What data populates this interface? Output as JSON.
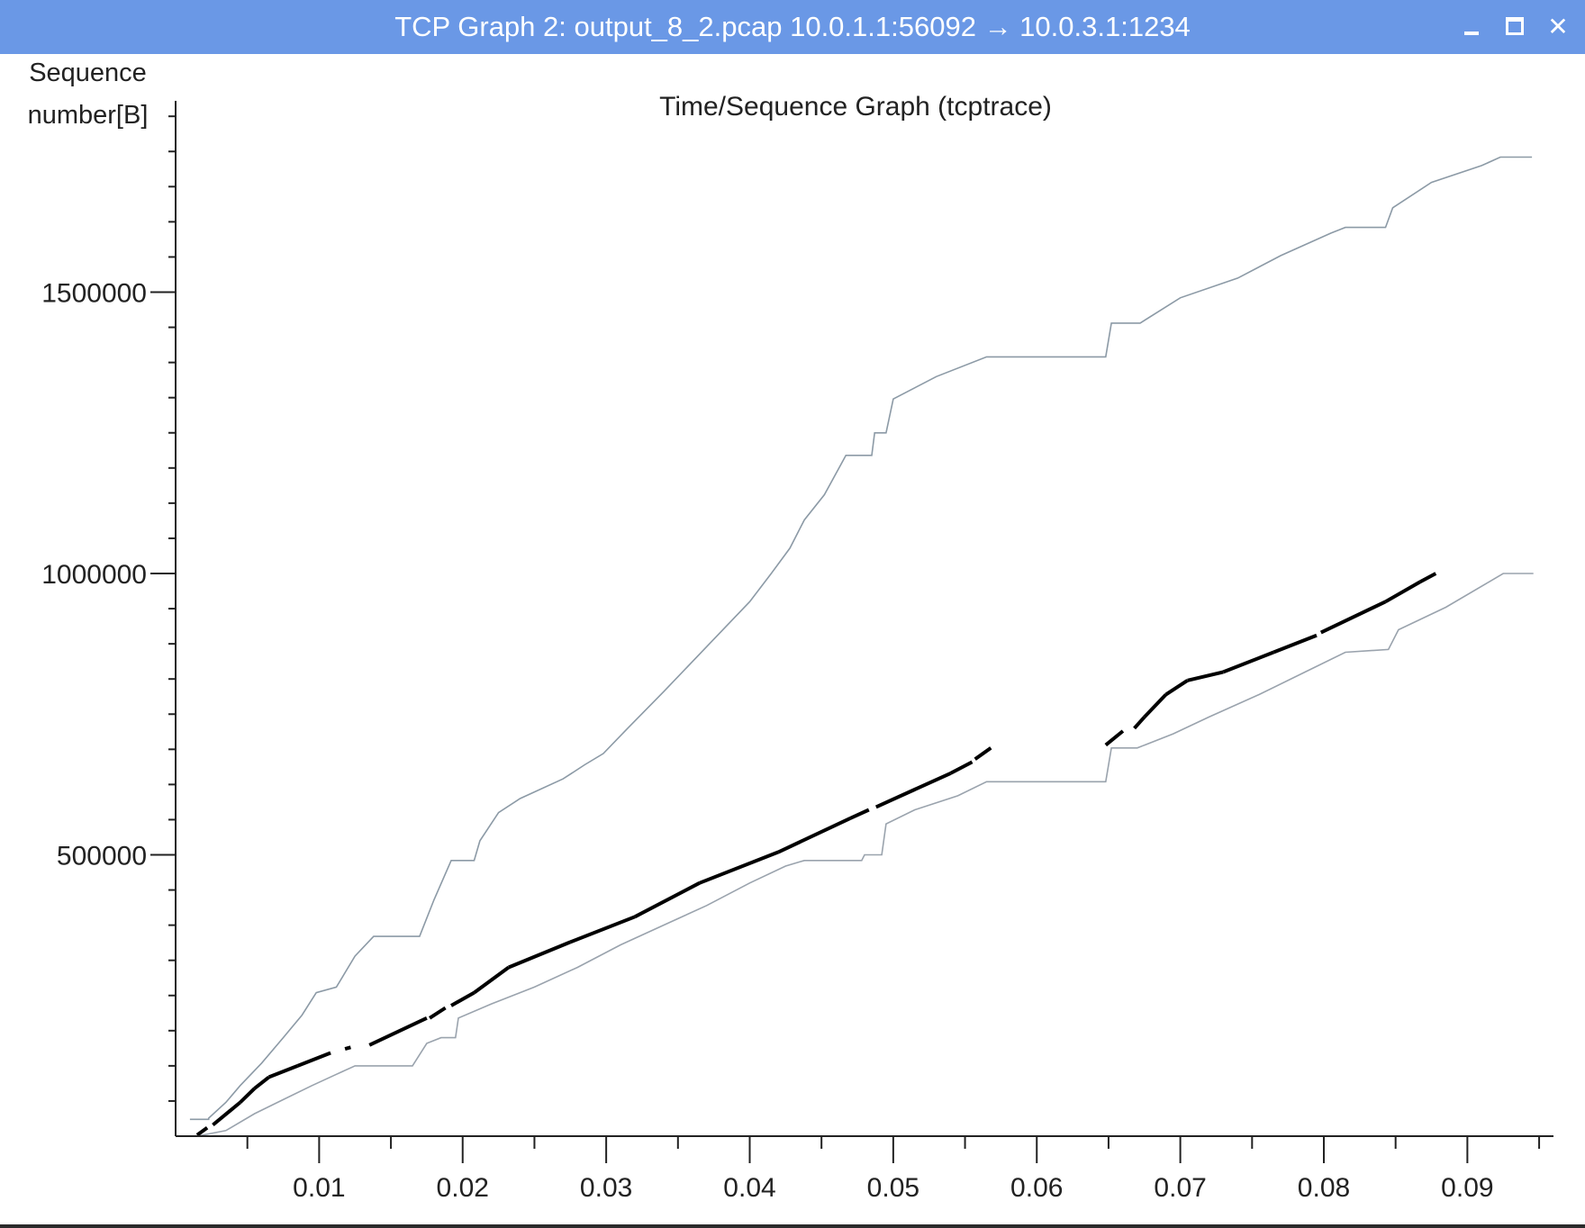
{
  "window": {
    "title": "TCP Graph 2: output_8_2.pcap 10.0.1.1:56092 → 10.0.3.1:1234",
    "min_icon": "minimize-icon",
    "max_icon": "maximize-icon",
    "close_icon": "close-icon",
    "close_glyph": "✕"
  },
  "chart_data": {
    "type": "line",
    "title": "Time/Sequence Graph (tcptrace)",
    "ylabel": "Sequence number[B]",
    "xlabel": "",
    "xlim": [
      0.0,
      0.096
    ],
    "ylim": [
      0,
      1840000
    ],
    "x_ticks": [
      0.01,
      0.02,
      0.03,
      0.04,
      0.05,
      0.06,
      0.07,
      0.08,
      0.09
    ],
    "x_tick_labels": [
      "0.01",
      "0.02",
      "0.03",
      "0.04",
      "0.05",
      "0.06",
      "0.07",
      "0.08",
      "0.09"
    ],
    "y_ticks": [
      500000,
      1000000,
      1500000
    ],
    "y_tick_labels": [
      "500000",
      "1000000",
      "1500000"
    ],
    "grid": false,
    "colors": {
      "window_line": "#8c9aa6",
      "ack_line": "#9aa3ad",
      "data_segments": "#000000",
      "axis": "#222222",
      "titlebar": "#6a98e6"
    },
    "series": [
      {
        "role": "receive-window",
        "style": "step",
        "points": [
          [
            0.001,
            30000
          ],
          [
            0.0023,
            30000
          ],
          [
            0.0023,
            32000
          ],
          [
            0.0035,
            60000
          ],
          [
            0.0045,
            90000
          ],
          [
            0.006,
            130000
          ],
          [
            0.0075,
            175000
          ],
          [
            0.0088,
            215000
          ],
          [
            0.0098,
            255000
          ],
          [
            0.0112,
            265000
          ],
          [
            0.0125,
            320000
          ],
          [
            0.0138,
            355000
          ],
          [
            0.017,
            355000
          ],
          [
            0.018,
            420000
          ],
          [
            0.0192,
            490000
          ],
          [
            0.0208,
            490000
          ],
          [
            0.0212,
            525000
          ],
          [
            0.0225,
            575000
          ],
          [
            0.024,
            600000
          ],
          [
            0.027,
            635000
          ],
          [
            0.0285,
            660000
          ],
          [
            0.0298,
            680000
          ],
          [
            0.0315,
            725000
          ],
          [
            0.034,
            790000
          ],
          [
            0.037,
            870000
          ],
          [
            0.04,
            950000
          ],
          [
            0.0415,
            1000000
          ],
          [
            0.0428,
            1045000
          ],
          [
            0.0438,
            1095000
          ],
          [
            0.0452,
            1140000
          ],
          [
            0.0467,
            1210000
          ],
          [
            0.0485,
            1210000
          ],
          [
            0.0487,
            1250000
          ],
          [
            0.0495,
            1250000
          ],
          [
            0.05,
            1310000
          ],
          [
            0.053,
            1350000
          ],
          [
            0.0565,
            1385000
          ],
          [
            0.0648,
            1385000
          ],
          [
            0.0652,
            1445000
          ],
          [
            0.0672,
            1445000
          ],
          [
            0.07,
            1490000
          ],
          [
            0.074,
            1525000
          ],
          [
            0.077,
            1565000
          ],
          [
            0.0805,
            1605000
          ],
          [
            0.0815,
            1615000
          ],
          [
            0.0843,
            1615000
          ],
          [
            0.0848,
            1650000
          ],
          [
            0.0875,
            1695000
          ],
          [
            0.091,
            1725000
          ],
          [
            0.0923,
            1740000
          ],
          [
            0.0945,
            1740000
          ]
        ]
      },
      {
        "role": "ack",
        "style": "step",
        "points": [
          [
            0.0015,
            0
          ],
          [
            0.0035,
            10000
          ],
          [
            0.0055,
            40000
          ],
          [
            0.0075,
            65000
          ],
          [
            0.0095,
            90000
          ],
          [
            0.0112,
            110000
          ],
          [
            0.0125,
            125000
          ],
          [
            0.0165,
            125000
          ],
          [
            0.0175,
            165000
          ],
          [
            0.0185,
            175000
          ],
          [
            0.0195,
            175000
          ],
          [
            0.0197,
            210000
          ],
          [
            0.022,
            235000
          ],
          [
            0.025,
            265000
          ],
          [
            0.028,
            300000
          ],
          [
            0.031,
            340000
          ],
          [
            0.034,
            375000
          ],
          [
            0.037,
            410000
          ],
          [
            0.04,
            450000
          ],
          [
            0.0425,
            480000
          ],
          [
            0.0438,
            490000
          ],
          [
            0.0478,
            490000
          ],
          [
            0.048,
            500000
          ],
          [
            0.0492,
            500000
          ],
          [
            0.0495,
            555000
          ],
          [
            0.0515,
            580000
          ],
          [
            0.0545,
            605000
          ],
          [
            0.0565,
            630000
          ],
          [
            0.0648,
            630000
          ],
          [
            0.0652,
            690000
          ],
          [
            0.067,
            690000
          ],
          [
            0.0695,
            715000
          ],
          [
            0.072,
            745000
          ],
          [
            0.0755,
            785000
          ],
          [
            0.0787,
            825000
          ],
          [
            0.0815,
            860000
          ],
          [
            0.0845,
            865000
          ],
          [
            0.0852,
            900000
          ],
          [
            0.0885,
            940000
          ],
          [
            0.0915,
            985000
          ],
          [
            0.0925,
            1000000
          ],
          [
            0.0946,
            1000000
          ]
        ]
      },
      {
        "role": "data-segments",
        "style": "segments",
        "segments": [
          [
            [
              0.0015,
              2000
            ],
            [
              0.0022,
              15000
            ]
          ],
          [
            [
              0.0026,
              20000
            ],
            [
              0.0045,
              60000
            ]
          ],
          [
            [
              0.0045,
              60000
            ],
            [
              0.0055,
              85000
            ]
          ],
          [
            [
              0.0055,
              85000
            ],
            [
              0.0065,
              105000
            ]
          ],
          [
            [
              0.0065,
              105000
            ],
            [
              0.0085,
              125000
            ]
          ],
          [
            [
              0.0085,
              125000
            ],
            [
              0.0108,
              148000
            ]
          ],
          [
            [
              0.0118,
              155000
            ],
            [
              0.0122,
              158000
            ]
          ],
          [
            [
              0.0135,
              162000
            ],
            [
              0.0175,
              210000
            ]
          ],
          [
            [
              0.0177,
              210000
            ],
            [
              0.0188,
              228000
            ]
          ],
          [
            [
              0.0192,
              232000
            ],
            [
              0.0208,
              255000
            ]
          ],
          [
            [
              0.0208,
              255000
            ],
            [
              0.0232,
              300000
            ]
          ],
          [
            [
              0.0232,
              300000
            ],
            [
              0.0275,
              345000
            ]
          ],
          [
            [
              0.0275,
              345000
            ],
            [
              0.032,
              390000
            ]
          ],
          [
            [
              0.032,
              390000
            ],
            [
              0.0365,
              450000
            ]
          ],
          [
            [
              0.0365,
              450000
            ],
            [
              0.042,
              505000
            ]
          ],
          [
            [
              0.042,
              505000
            ],
            [
              0.047,
              565000
            ]
          ],
          [
            [
              0.047,
              565000
            ],
            [
              0.0483,
              580000
            ]
          ],
          [
            [
              0.0488,
              585000
            ],
            [
              0.054,
              645000
            ]
          ],
          [
            [
              0.054,
              645000
            ],
            [
              0.0555,
              665000
            ]
          ],
          [
            [
              0.0557,
              670000
            ],
            [
              0.0568,
              690000
            ]
          ],
          [
            [
              0.0648,
              695000
            ],
            [
              0.066,
              720000
            ]
          ],
          [
            [
              0.0668,
              725000
            ],
            [
              0.0675,
              745000
            ]
          ],
          [
            [
              0.0675,
              745000
            ],
            [
              0.069,
              785000
            ]
          ],
          [
            [
              0.069,
              785000
            ],
            [
              0.0705,
              810000
            ]
          ],
          [
            [
              0.0705,
              810000
            ],
            [
              0.073,
              825000
            ]
          ],
          [
            [
              0.073,
              825000
            ],
            [
              0.0765,
              860000
            ]
          ],
          [
            [
              0.0765,
              860000
            ],
            [
              0.0795,
              890000
            ]
          ],
          [
            [
              0.0798,
              895000
            ],
            [
              0.0843,
              950000
            ]
          ],
          [
            [
              0.0843,
              950000
            ],
            [
              0.0867,
              985000
            ]
          ],
          [
            [
              0.0867,
              985000
            ],
            [
              0.0878,
              1000000
            ]
          ]
        ]
      }
    ]
  }
}
